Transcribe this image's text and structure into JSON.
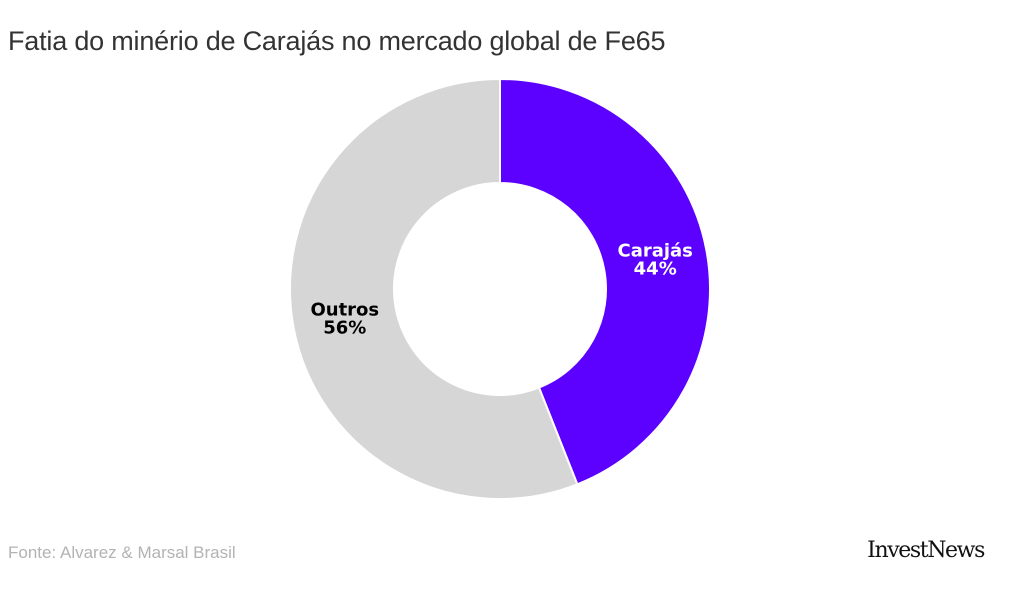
{
  "chart_data": {
    "type": "pie",
    "style": "donut",
    "title": "Fatia do minério de Carajás no mercado global de Fe65",
    "slices": [
      {
        "label": "Carajás",
        "value": 44,
        "display": "44%",
        "color": "#5c00ff",
        "text_color": "#ffffff"
      },
      {
        "label": "Outros",
        "value": 56,
        "display": "56%",
        "color": "#d6d6d6",
        "text_color": "#000000"
      }
    ]
  },
  "footer": {
    "source": "Fonte: Alvarez & Marsal Brasil",
    "logo": "InvestNews"
  }
}
